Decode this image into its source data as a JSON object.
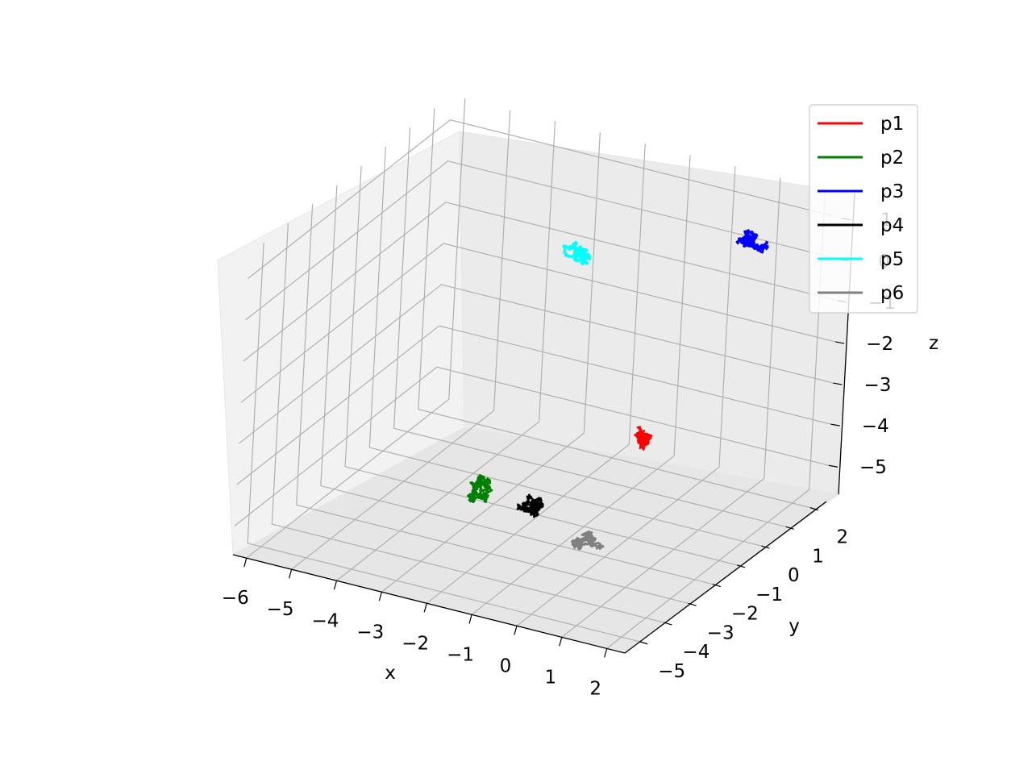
{
  "chart_data": {
    "type": "line3d",
    "title": "",
    "xlabel": "x",
    "ylabel": "y",
    "zlabel": "z",
    "xticks": [
      "−6",
      "−5",
      "−4",
      "−3",
      "−2",
      "−1",
      "0",
      "1",
      "2"
    ],
    "yticks": [
      "−5",
      "−4",
      "−3",
      "−2",
      "−1",
      "0",
      "1",
      "2"
    ],
    "zticks": [
      "−5",
      "−4",
      "−3",
      "−2",
      "−1",
      "0",
      "1"
    ],
    "legend_position": "upper-right",
    "grid": true,
    "series": [
      {
        "name": "p1",
        "color": "#ff0000",
        "center_approx": {
          "x": -0.3,
          "y": 0.2,
          "z": -3.9
        }
      },
      {
        "name": "p2",
        "color": "#008000",
        "center_approx": {
          "x": -2.6,
          "y": -2.1,
          "z": -4.8
        }
      },
      {
        "name": "p3",
        "color": "#0000ff",
        "center_approx": {
          "x": 0.9,
          "y": 1.6,
          "z": 0.4
        }
      },
      {
        "name": "p4",
        "color": "#000000",
        "center_approx": {
          "x": -1.7,
          "y": -1.9,
          "z": -5.0
        }
      },
      {
        "name": "p5",
        "color": "#00ffff",
        "center_approx": {
          "x": -2.8,
          "y": 1.7,
          "z": -0.9
        }
      },
      {
        "name": "p6",
        "color": "#808080",
        "center_approx": {
          "x": -0.4,
          "y": -2.1,
          "z": -5.4
        }
      }
    ]
  }
}
